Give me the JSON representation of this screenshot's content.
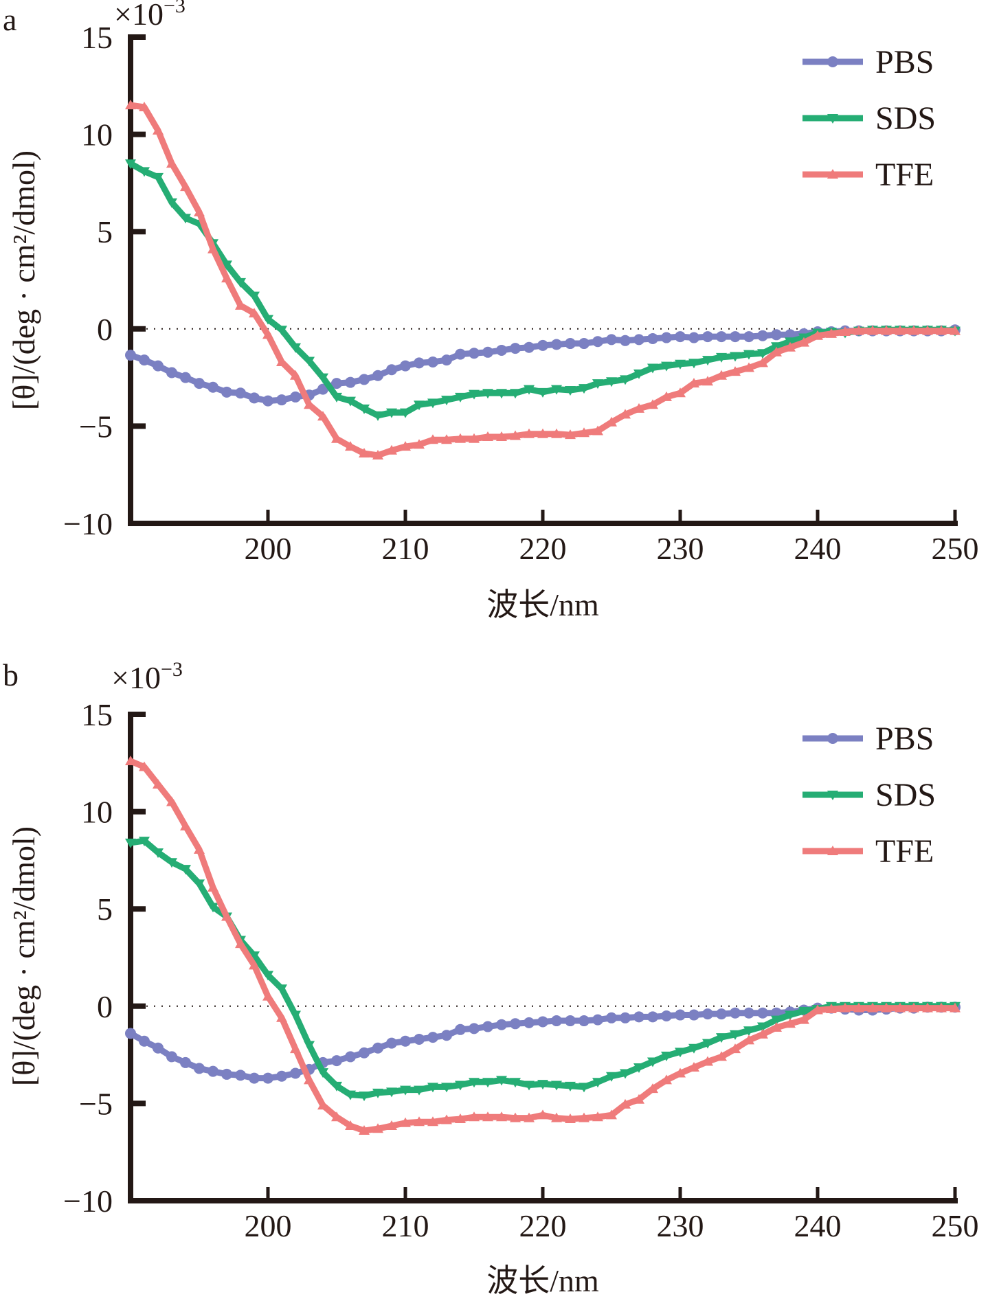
{
  "chart_data": [
    {
      "type": "line",
      "panel_label": "a",
      "scale_note": "×10",
      "scale_exponent": "−3",
      "xlabel": "波长/nm",
      "ylabel": "[θ]/(deg · cm²/dmol)",
      "xlim": [
        190,
        250
      ],
      "ylim": [
        -10,
        15
      ],
      "xticks": [
        200,
        210,
        220,
        230,
        240,
        250
      ],
      "xtick_labels": [
        "200",
        "210",
        "220",
        "230",
        "240",
        "250"
      ],
      "yticks": [
        15,
        10,
        5,
        0,
        -5,
        -10
      ],
      "ytick_labels": [
        "15",
        "10",
        "5",
        "0",
        "−5",
        "−10"
      ],
      "zero_line": "dotted",
      "legend_position": "top-right",
      "x": [
        190,
        191,
        192,
        193,
        194,
        195,
        196,
        197,
        198,
        199,
        200,
        201,
        202,
        203,
        204,
        205,
        206,
        207,
        208,
        209,
        210,
        211,
        212,
        213,
        214,
        215,
        216,
        217,
        218,
        219,
        220,
        221,
        222,
        223,
        224,
        225,
        226,
        227,
        228,
        229,
        230,
        231,
        232,
        233,
        234,
        235,
        236,
        237,
        238,
        239,
        240,
        241,
        242,
        243,
        244,
        245,
        246,
        247,
        248,
        249,
        250
      ],
      "series": [
        {
          "name": "PBS",
          "color": "#7b80c2",
          "marker": "circle",
          "values": [
            -1.35,
            -1.6,
            -1.9,
            -2.25,
            -2.5,
            -2.8,
            -3.0,
            -3.25,
            -3.3,
            -3.55,
            -3.7,
            -3.65,
            -3.5,
            -3.4,
            -3.1,
            -2.8,
            -2.75,
            -2.6,
            -2.4,
            -2.1,
            -1.9,
            -1.75,
            -1.7,
            -1.6,
            -1.3,
            -1.25,
            -1.2,
            -1.1,
            -1.0,
            -0.95,
            -0.85,
            -0.8,
            -0.75,
            -0.75,
            -0.65,
            -0.55,
            -0.6,
            -0.55,
            -0.5,
            -0.45,
            -0.4,
            -0.45,
            -0.4,
            -0.4,
            -0.4,
            -0.4,
            -0.35,
            -0.3,
            -0.3,
            -0.25,
            -0.15,
            -0.15,
            -0.1,
            -0.1,
            -0.1,
            -0.1,
            -0.1,
            -0.1,
            -0.1,
            -0.1,
            -0.05
          ]
        },
        {
          "name": "SDS",
          "color": "#25ad74",
          "marker": "triangle-down",
          "values": [
            8.5,
            8.1,
            7.8,
            6.5,
            5.7,
            5.4,
            4.4,
            3.3,
            2.4,
            1.7,
            0.5,
            -0.05,
            -0.95,
            -1.65,
            -2.5,
            -3.5,
            -3.7,
            -4.1,
            -4.45,
            -4.3,
            -4.3,
            -3.9,
            -3.8,
            -3.65,
            -3.5,
            -3.35,
            -3.3,
            -3.3,
            -3.3,
            -3.1,
            -3.25,
            -3.1,
            -3.15,
            -3.05,
            -2.8,
            -2.7,
            -2.6,
            -2.3,
            -2.0,
            -1.9,
            -1.8,
            -1.75,
            -1.6,
            -1.45,
            -1.4,
            -1.3,
            -1.25,
            -0.9,
            -0.65,
            -0.45,
            -0.2,
            -0.15,
            -0.2,
            -0.1,
            -0.05,
            -0.05,
            -0.05,
            -0.05,
            -0.05,
            -0.05,
            -0.1
          ]
        },
        {
          "name": "TFE",
          "color": "#ef7b7b",
          "marker": "triangle-up",
          "values": [
            11.5,
            11.4,
            10.2,
            8.5,
            7.3,
            6.0,
            4.1,
            2.6,
            1.2,
            0.8,
            -0.3,
            -1.7,
            -2.4,
            -3.9,
            -4.5,
            -5.65,
            -6.05,
            -6.4,
            -6.5,
            -6.25,
            -6.05,
            -5.95,
            -5.7,
            -5.7,
            -5.65,
            -5.65,
            -5.55,
            -5.55,
            -5.5,
            -5.4,
            -5.4,
            -5.4,
            -5.45,
            -5.35,
            -5.25,
            -4.8,
            -4.4,
            -4.1,
            -3.9,
            -3.5,
            -3.3,
            -2.8,
            -2.7,
            -2.4,
            -2.2,
            -2.0,
            -1.75,
            -1.2,
            -0.95,
            -0.7,
            -0.35,
            -0.25,
            -0.15,
            -0.1,
            -0.1,
            -0.1,
            -0.1,
            -0.1,
            -0.1,
            -0.1,
            -0.1
          ]
        }
      ]
    },
    {
      "type": "line",
      "panel_label": "b",
      "scale_note": "×10",
      "scale_exponent": "−3",
      "xlabel": "波长/nm",
      "ylabel": "[θ]/(deg · cm²/dmol)",
      "xlim": [
        190,
        250
      ],
      "ylim": [
        -10,
        15
      ],
      "xticks": [
        200,
        210,
        220,
        230,
        240,
        250
      ],
      "xtick_labels": [
        "200",
        "210",
        "220",
        "230",
        "240",
        "250"
      ],
      "yticks": [
        15,
        10,
        5,
        0,
        -5,
        -10
      ],
      "ytick_labels": [
        "15",
        "10",
        "5",
        "0",
        "−5",
        "−10"
      ],
      "zero_line": "dotted",
      "legend_position": "top-right",
      "x": [
        190,
        191,
        192,
        193,
        194,
        195,
        196,
        197,
        198,
        199,
        200,
        201,
        202,
        203,
        204,
        205,
        206,
        207,
        208,
        209,
        210,
        211,
        212,
        213,
        214,
        215,
        216,
        217,
        218,
        219,
        220,
        221,
        222,
        223,
        224,
        225,
        226,
        227,
        228,
        229,
        230,
        231,
        232,
        233,
        234,
        235,
        236,
        237,
        238,
        239,
        240,
        241,
        242,
        243,
        244,
        245,
        246,
        247,
        248,
        249,
        250
      ],
      "series": [
        {
          "name": "PBS",
          "color": "#7b80c2",
          "marker": "circle",
          "values": [
            -1.4,
            -1.8,
            -2.15,
            -2.6,
            -2.9,
            -3.2,
            -3.35,
            -3.5,
            -3.55,
            -3.7,
            -3.7,
            -3.6,
            -3.45,
            -3.25,
            -2.9,
            -2.8,
            -2.6,
            -2.4,
            -2.15,
            -1.9,
            -1.8,
            -1.7,
            -1.6,
            -1.5,
            -1.2,
            -1.15,
            -1.05,
            -0.95,
            -0.9,
            -0.85,
            -0.8,
            -0.75,
            -0.75,
            -0.75,
            -0.7,
            -0.6,
            -0.6,
            -0.55,
            -0.55,
            -0.5,
            -0.45,
            -0.45,
            -0.4,
            -0.4,
            -0.35,
            -0.35,
            -0.35,
            -0.35,
            -0.3,
            -0.2,
            -0.1,
            -0.1,
            -0.15,
            -0.2,
            -0.2,
            -0.15,
            -0.1,
            -0.1,
            -0.05,
            -0.05,
            -0.05
          ]
        },
        {
          "name": "SDS",
          "color": "#25ad74",
          "marker": "triangle-down",
          "values": [
            8.4,
            8.5,
            7.9,
            7.4,
            7.05,
            6.3,
            5.1,
            4.6,
            3.4,
            2.6,
            1.6,
            0.9,
            -0.45,
            -2.0,
            -3.4,
            -4.1,
            -4.55,
            -4.6,
            -4.45,
            -4.4,
            -4.3,
            -4.3,
            -4.15,
            -4.15,
            -4.05,
            -3.9,
            -3.9,
            -3.8,
            -3.9,
            -4.05,
            -4.0,
            -4.05,
            -4.1,
            -4.15,
            -3.9,
            -3.6,
            -3.45,
            -3.15,
            -2.85,
            -2.55,
            -2.35,
            -2.15,
            -1.9,
            -1.6,
            -1.45,
            -1.25,
            -1.05,
            -0.7,
            -0.45,
            -0.25,
            -0.15,
            0.0,
            0.0,
            0.0,
            0.0,
            0.0,
            0.0,
            0.0,
            0.0,
            0.0,
            0.0
          ]
        },
        {
          "name": "TFE",
          "color": "#ef7b7b",
          "marker": "triangle-up",
          "values": [
            12.6,
            12.3,
            11.4,
            10.5,
            9.25,
            8.05,
            6.1,
            4.6,
            3.2,
            2.1,
            0.5,
            -0.6,
            -2.2,
            -3.8,
            -5.1,
            -5.7,
            -6.15,
            -6.4,
            -6.3,
            -6.15,
            -6.0,
            -5.95,
            -5.95,
            -5.85,
            -5.8,
            -5.7,
            -5.7,
            -5.7,
            -5.75,
            -5.75,
            -5.6,
            -5.75,
            -5.8,
            -5.75,
            -5.7,
            -5.6,
            -5.05,
            -4.8,
            -4.25,
            -3.8,
            -3.45,
            -3.15,
            -2.85,
            -2.6,
            -2.2,
            -1.75,
            -1.45,
            -1.1,
            -0.9,
            -0.7,
            -0.2,
            -0.15,
            -0.1,
            -0.1,
            -0.1,
            -0.1,
            -0.1,
            -0.1,
            -0.1,
            -0.1,
            -0.1
          ]
        }
      ]
    }
  ]
}
